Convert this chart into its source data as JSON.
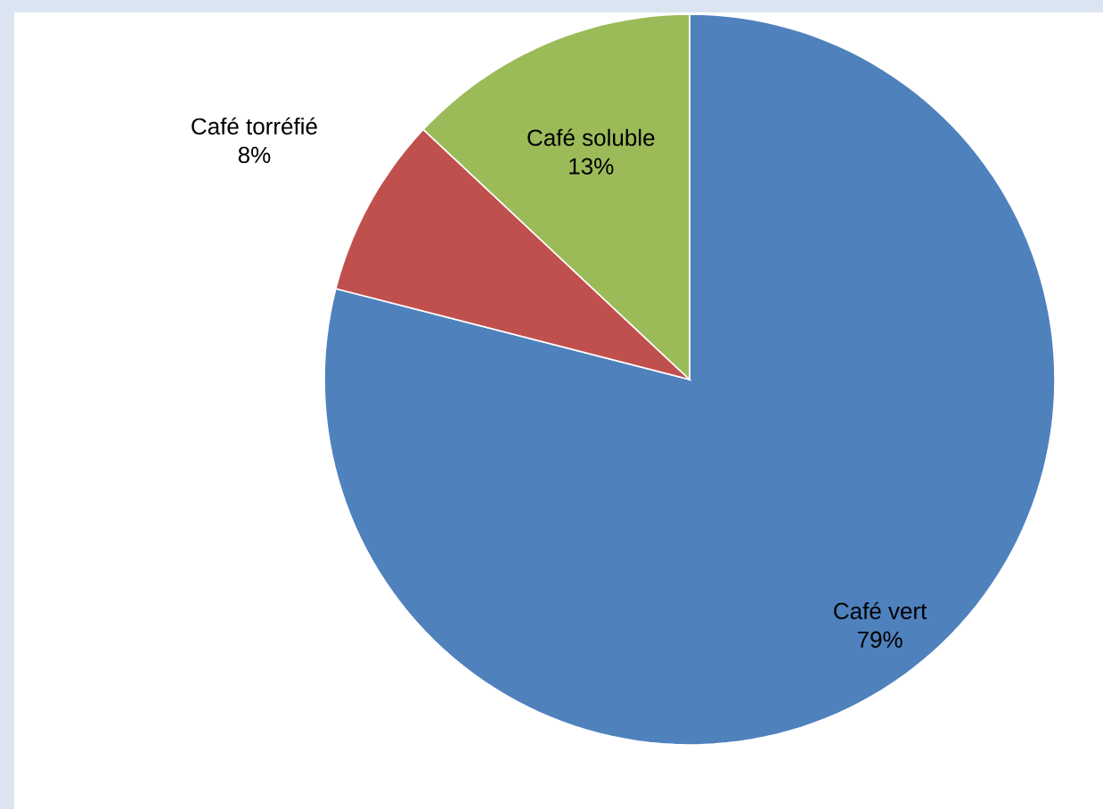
{
  "chart_data": {
    "type": "pie",
    "categories": [
      "Café vert",
      "Café torréfié",
      "Café soluble"
    ],
    "values": [
      79,
      8,
      13
    ],
    "value_labels": [
      "79%",
      "8%",
      "13%"
    ],
    "colors": [
      "#4f81bd",
      "#c0504d",
      "#9bbb59"
    ]
  }
}
